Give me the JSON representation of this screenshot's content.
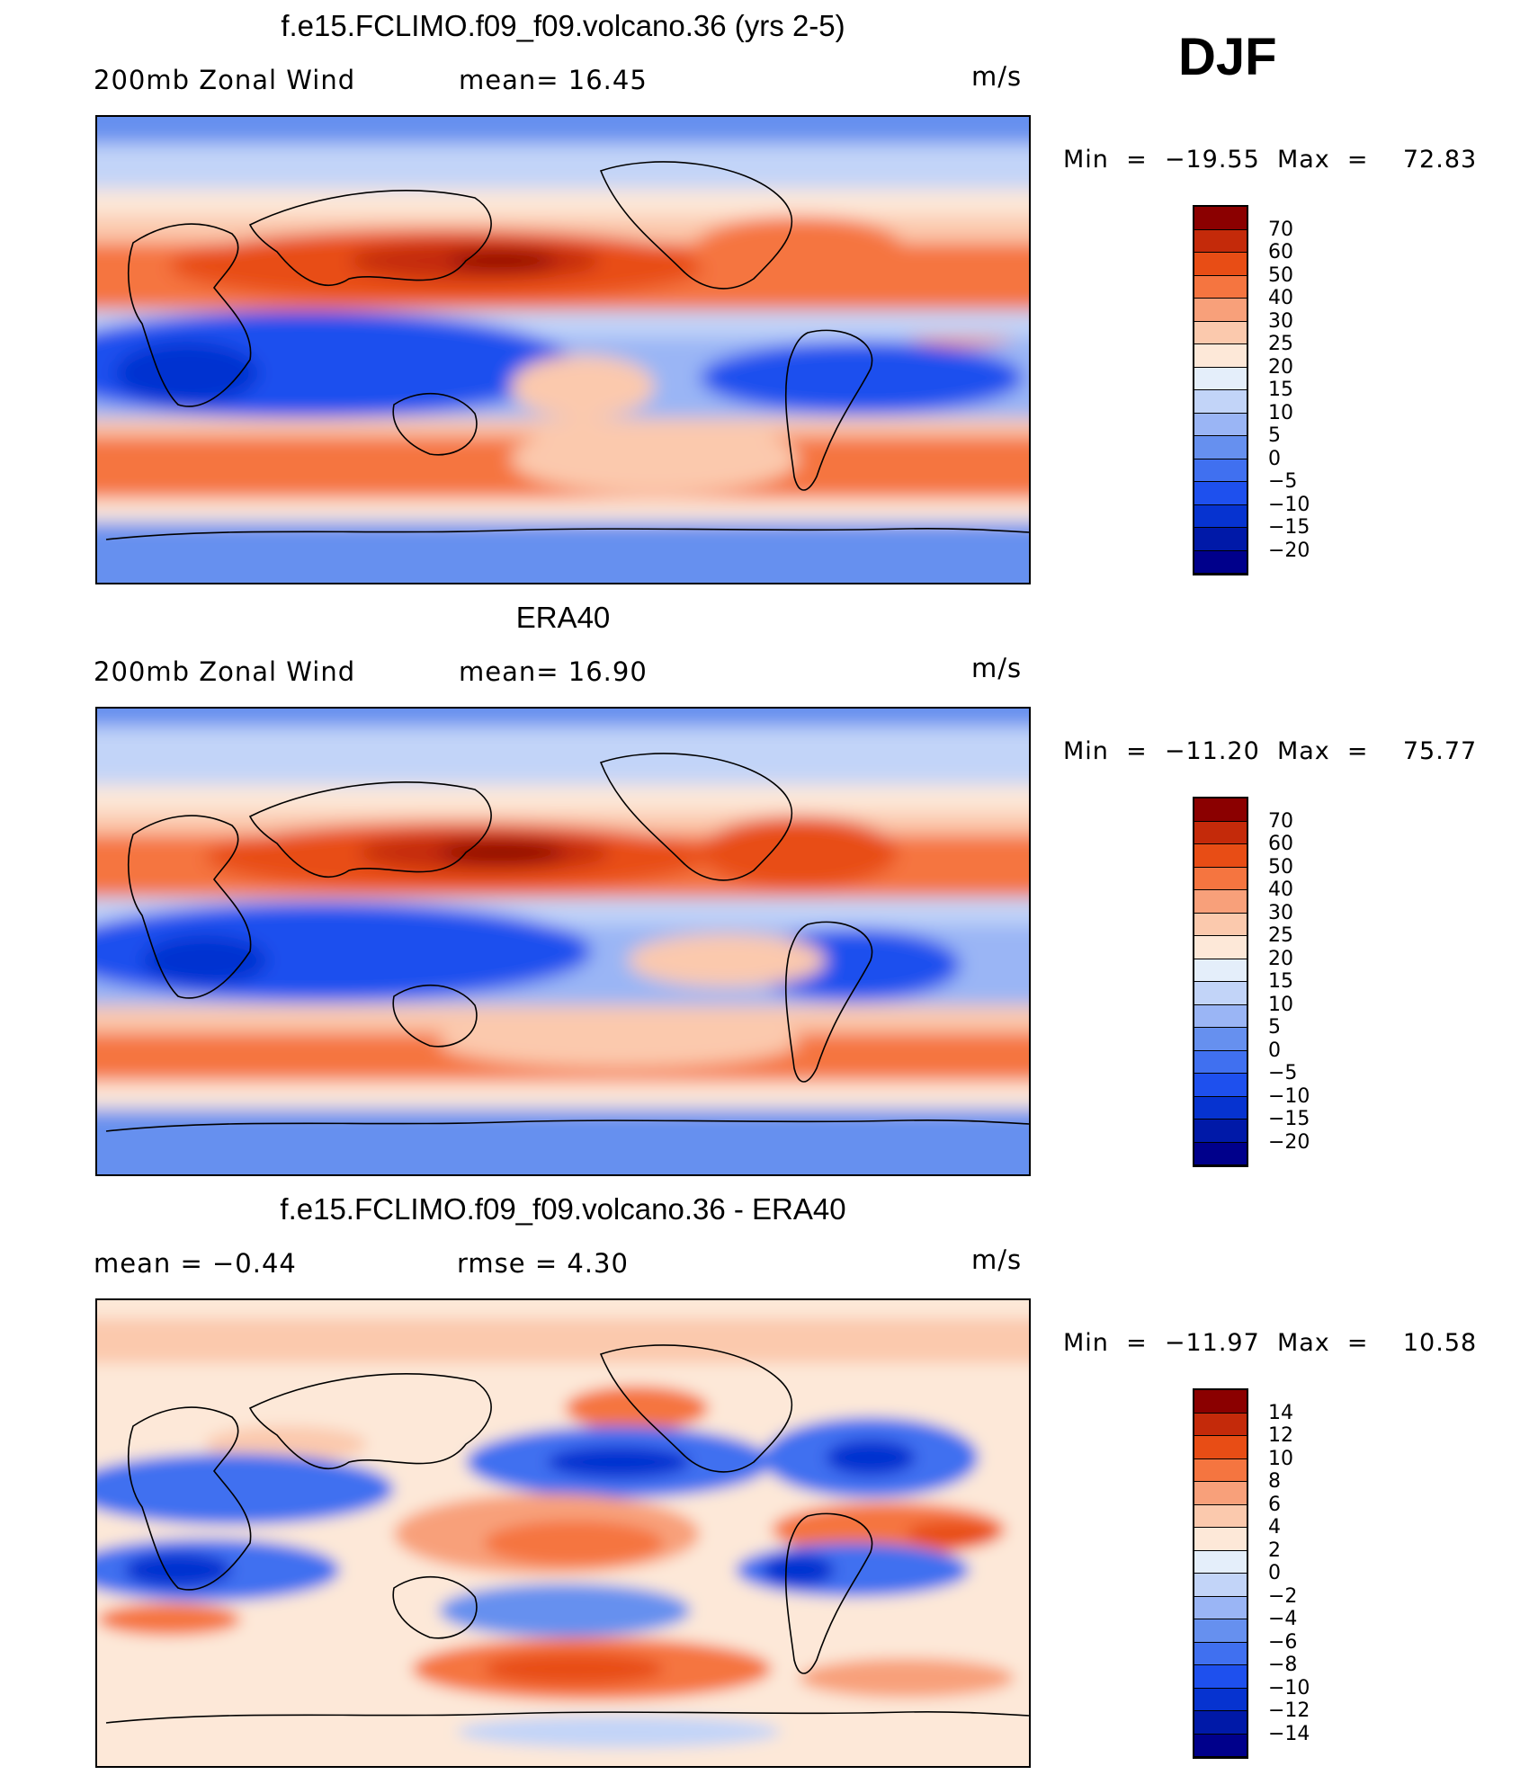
{
  "season_label": "DJF",
  "panels": [
    {
      "title": "f.e15.FCLIMO.f09_f09.volcano.36 (yrs 2-5)",
      "left_label": "200mb  Zonal  Wind",
      "stat_label": "mean=   16.45",
      "units": "m/s",
      "minmax": "Min  =  −19.55  Max  =    72.83",
      "levels": [
        "70",
        "60",
        "50",
        "40",
        "30",
        "25",
        "20",
        "15",
        "10",
        "5",
        "0",
        "−5",
        "−10",
        "−15",
        "−20"
      ]
    },
    {
      "title": "ERA40",
      "left_label": "200mb  Zonal  Wind",
      "stat_label": "mean=   16.90",
      "units": "m/s",
      "minmax": "Min  =  −11.20  Max  =    75.77",
      "levels": [
        "70",
        "60",
        "50",
        "40",
        "30",
        "25",
        "20",
        "15",
        "10",
        "5",
        "0",
        "−5",
        "−10",
        "−15",
        "−20"
      ]
    },
    {
      "title": "f.e15.FCLIMO.f09_f09.volcano.36 - ERA40",
      "left_label": "mean  =    −0.44",
      "stat_label": "rmse  =     4.30",
      "units": "m/s",
      "minmax": "Min  =  −11.97  Max  =    10.58",
      "levels": [
        "14",
        "12",
        "10",
        "8",
        "6",
        "4",
        "2",
        "0",
        "−2",
        "−4",
        "−6",
        "−8",
        "−10",
        "−12",
        "−14"
      ]
    }
  ],
  "chart_data": [
    {
      "type": "heatmap",
      "title": "f.e15.FCLIMO.f09_f09.volcano.36 (yrs 2-5)",
      "variable": "200mb Zonal Wind",
      "units": "m/s",
      "mean": 16.45,
      "min": -19.55,
      "max": 72.83,
      "contour_levels": [
        -20,
        -15,
        -10,
        -5,
        0,
        5,
        10,
        15,
        20,
        25,
        30,
        40,
        50,
        60,
        70
      ],
      "colors": [
        "#00008b",
        "#0019a8",
        "#0633d0",
        "#1e50ee",
        "#4070f0",
        "#6690ef",
        "#9ab5f5",
        "#c2d4f8",
        "#e4eefa",
        "#fde8d8",
        "#fbc9ad",
        "#f8a07a",
        "#f57540",
        "#e84d15",
        "#c42a0a",
        "#8b0000"
      ]
    },
    {
      "type": "heatmap",
      "title": "ERA40",
      "variable": "200mb Zonal Wind",
      "units": "m/s",
      "mean": 16.9,
      "min": -11.2,
      "max": 75.77,
      "contour_levels": [
        -20,
        -15,
        -10,
        -5,
        0,
        5,
        10,
        15,
        20,
        25,
        30,
        40,
        50,
        60,
        70
      ],
      "colors": [
        "#00008b",
        "#0019a8",
        "#0633d0",
        "#1e50ee",
        "#4070f0",
        "#6690ef",
        "#9ab5f5",
        "#c2d4f8",
        "#e4eefa",
        "#fde8d8",
        "#fbc9ad",
        "#f8a07a",
        "#f57540",
        "#e84d15",
        "#c42a0a",
        "#8b0000"
      ]
    },
    {
      "type": "heatmap",
      "title": "f.e15.FCLIMO.f09_f09.volcano.36 - ERA40",
      "units": "m/s",
      "mean": -0.44,
      "rmse": 4.3,
      "min": -11.97,
      "max": 10.58,
      "contour_levels": [
        -14,
        -12,
        -10,
        -8,
        -6,
        -4,
        -2,
        0,
        2,
        4,
        6,
        8,
        10,
        12,
        14
      ],
      "colors": [
        "#00008b",
        "#0019a8",
        "#0633d0",
        "#1e50ee",
        "#4070f0",
        "#6690ef",
        "#9ab5f5",
        "#c2d4f8",
        "#e4eefa",
        "#fde8d8",
        "#fbc9ad",
        "#f8a07a",
        "#f57540",
        "#e84d15",
        "#c42a0a",
        "#8b0000"
      ]
    }
  ]
}
